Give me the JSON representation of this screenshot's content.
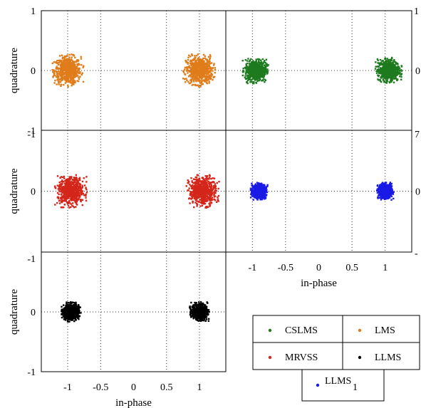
{
  "chart_data": [
    {
      "type": "scatter",
      "panel": "top-left",
      "ylabel": "quadrature",
      "xlim": [
        -1.4,
        1.4
      ],
      "ylim": [
        -1,
        1
      ],
      "ytick_labels": [
        "1",
        "0",
        "-1"
      ],
      "grid": "dotted",
      "series": [
        {
          "name": "LMS",
          "color": "#e07c1a",
          "clusters": [
            {
              "x": -1,
              "y": 0,
              "spread": 0.25
            },
            {
              "x": 1,
              "y": 0,
              "spread": 0.25
            }
          ]
        }
      ]
    },
    {
      "type": "scatter",
      "panel": "top-right",
      "xlim": [
        -1.4,
        1.4
      ],
      "ylim": [
        -1,
        1
      ],
      "ytick_labels": [
        "1",
        "0"
      ],
      "grid": "dotted",
      "series": [
        {
          "name": "CSLMS",
          "color": "#1e7a1e",
          "clusters": [
            {
              "x": -0.95,
              "y": 0,
              "spread": 0.2
            },
            {
              "x": 1.05,
              "y": 0,
              "spread": 0.2
            }
          ]
        }
      ]
    },
    {
      "type": "scatter",
      "panel": "middle-left",
      "ylabel": "quadrature",
      "xlim": [
        -1.4,
        1.4
      ],
      "ylim": [
        -1,
        1
      ],
      "ytick_labels": [
        "-1",
        "0"
      ],
      "grid": "dotted",
      "series": [
        {
          "name": "MRVSS",
          "color": "#d4261a",
          "clusters": [
            {
              "x": -0.95,
              "y": 0,
              "spread": 0.25
            },
            {
              "x": 1.05,
              "y": 0,
              "spread": 0.25
            }
          ]
        }
      ]
    },
    {
      "type": "scatter",
      "panel": "middle-right",
      "xlabel": "in-phase",
      "xlim": [
        -1.4,
        1.4
      ],
      "ylim": [
        -1,
        1
      ],
      "xtick_labels": [
        "-1",
        "-0.5",
        "0",
        "0.5",
        "1"
      ],
      "ytick_labels": [
        "0"
      ],
      "grid": "dotted",
      "series": [
        {
          "name": "LLMS1",
          "color": "#1a1ae6",
          "clusters": [
            {
              "x": -0.9,
              "y": 0,
              "spread": 0.13
            },
            {
              "x": 1.0,
              "y": 0,
              "spread": 0.13
            }
          ]
        }
      ]
    },
    {
      "type": "scatter",
      "panel": "bottom-left",
      "ylabel": "quadrature",
      "xlabel": "in-phase",
      "xlim": [
        -1.4,
        1.4
      ],
      "ylim": [
        -1,
        1
      ],
      "xtick_labels": [
        "-1",
        "-0.5",
        "0",
        "0.5",
        "1"
      ],
      "ytick_labels": [
        "-1",
        "0",
        "-1"
      ],
      "grid": "dotted",
      "series": [
        {
          "name": "LLMS",
          "color": "#000000",
          "clusters": [
            {
              "x": -0.95,
              "y": 0,
              "spread": 0.15
            },
            {
              "x": 1.0,
              "y": 0,
              "spread": 0.15
            }
          ]
        }
      ]
    }
  ],
  "legend": {
    "items": [
      {
        "label": "CSLMS",
        "color": "#1e7a1e"
      },
      {
        "label": "LMS",
        "color": "#e07c1a"
      },
      {
        "label": "MRVSS",
        "color": "#d4261a"
      },
      {
        "label": "LLMS",
        "color": "#000000"
      },
      {
        "label": "LLMS",
        "subscript": "1",
        "color": "#1a1ae6"
      }
    ]
  },
  "extra_ticks": {
    "right_top": "1",
    "right_upper": "0",
    "right_mid_top": "7",
    "right_mid": "0",
    "right_mid_bottom": "-"
  }
}
